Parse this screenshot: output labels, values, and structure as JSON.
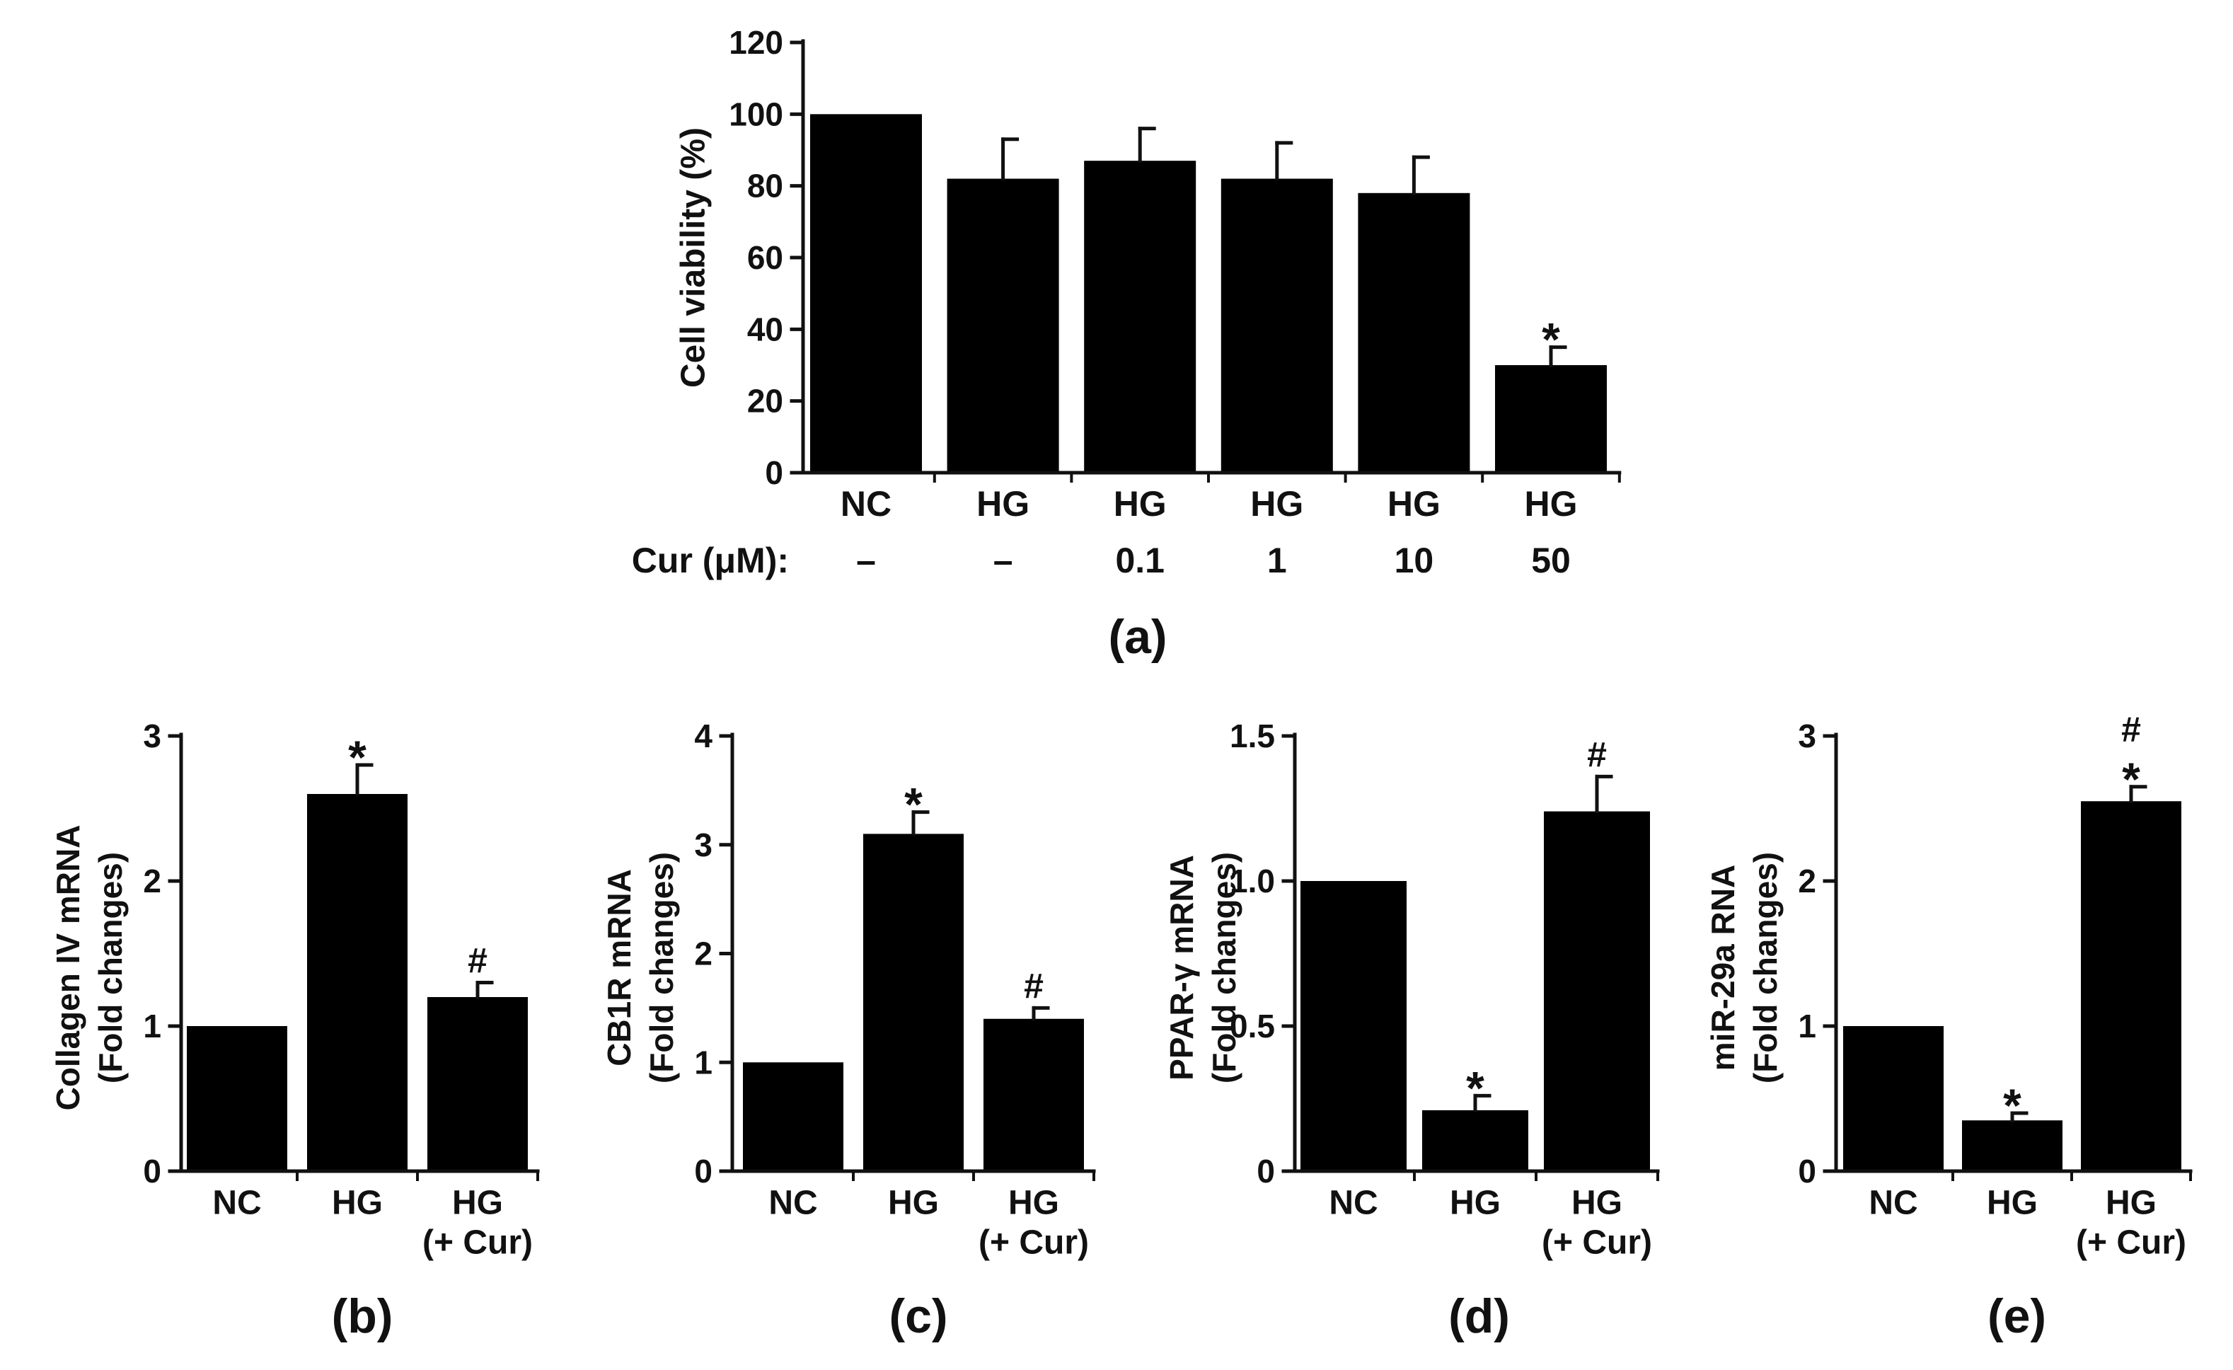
{
  "colors": {
    "bar": "#000000",
    "axis": "#111111",
    "text": "#111111"
  },
  "chart_data": [
    {
      "panel": "a",
      "type": "bar",
      "panel_label": "(a)",
      "ylabel": "Cell viability (%)",
      "ylim": [
        0,
        120
      ],
      "yticks": [
        0,
        20,
        40,
        60,
        80,
        100,
        120
      ],
      "categories": [
        "NC",
        "HG",
        "HG",
        "HG",
        "HG",
        "HG"
      ],
      "cur_row_label": "Cur (μM):",
      "cur_values": [
        "–",
        "–",
        "0.1",
        "1",
        "10",
        "50"
      ],
      "values": [
        100,
        82,
        87,
        82,
        78,
        30
      ],
      "errors": [
        0,
        11,
        9,
        10,
        10,
        5
      ],
      "annotations": [
        "",
        "",
        "",
        "",
        "",
        "*"
      ]
    },
    {
      "panel": "b",
      "type": "bar",
      "panel_label": "(b)",
      "ylabel_lines": [
        "Collagen IV mRNA",
        "(Fold changes)"
      ],
      "ylim": [
        0,
        3
      ],
      "yticks": [
        "0",
        "1",
        "2",
        "3"
      ],
      "categories": [
        "NC",
        "HG",
        "HG"
      ],
      "sub_labels": [
        "",
        "",
        "(+ Cur)"
      ],
      "values": [
        1.0,
        2.6,
        1.2
      ],
      "errors": [
        0,
        0.2,
        0.1
      ],
      "annotations": [
        "",
        "*",
        "#"
      ]
    },
    {
      "panel": "c",
      "type": "bar",
      "panel_label": "(c)",
      "ylabel_lines": [
        "CB1R mRNA",
        "(Fold changes)"
      ],
      "ylim": [
        0,
        4
      ],
      "yticks": [
        "0",
        "1",
        "2",
        "3",
        "4"
      ],
      "categories": [
        "NC",
        "HG",
        "HG"
      ],
      "sub_labels": [
        "",
        "",
        "(+ Cur)"
      ],
      "values": [
        1.0,
        3.1,
        1.4
      ],
      "errors": [
        0,
        0.2,
        0.1
      ],
      "annotations": [
        "",
        "*",
        "#"
      ]
    },
    {
      "panel": "d",
      "type": "bar",
      "panel_label": "(d)",
      "ylabel_lines": [
        "PPAR-γ mRNA",
        "(Fold changes)"
      ],
      "ylim": [
        0,
        1.5
      ],
      "yticks": [
        "0",
        "0.5",
        "1.0",
        "1.5"
      ],
      "categories": [
        "NC",
        "HG",
        "HG"
      ],
      "sub_labels": [
        "",
        "",
        "(+ Cur)"
      ],
      "values": [
        1.0,
        0.21,
        1.24
      ],
      "errors": [
        0,
        0.05,
        0.12
      ],
      "annotations": [
        "",
        "*",
        "#"
      ]
    },
    {
      "panel": "e",
      "type": "bar",
      "panel_label": "(e)",
      "ylabel_lines": [
        "miR-29a RNA",
        "(Fold changes)"
      ],
      "ylim": [
        0,
        3
      ],
      "yticks": [
        "0",
        "1",
        "2",
        "3"
      ],
      "categories": [
        "NC",
        "HG",
        "HG"
      ],
      "sub_labels": [
        "",
        "",
        "(+ Cur)"
      ],
      "values": [
        1.0,
        0.35,
        2.55
      ],
      "errors": [
        0,
        0.05,
        0.1
      ],
      "annotations": [
        "",
        "*",
        "#\n*"
      ]
    }
  ]
}
